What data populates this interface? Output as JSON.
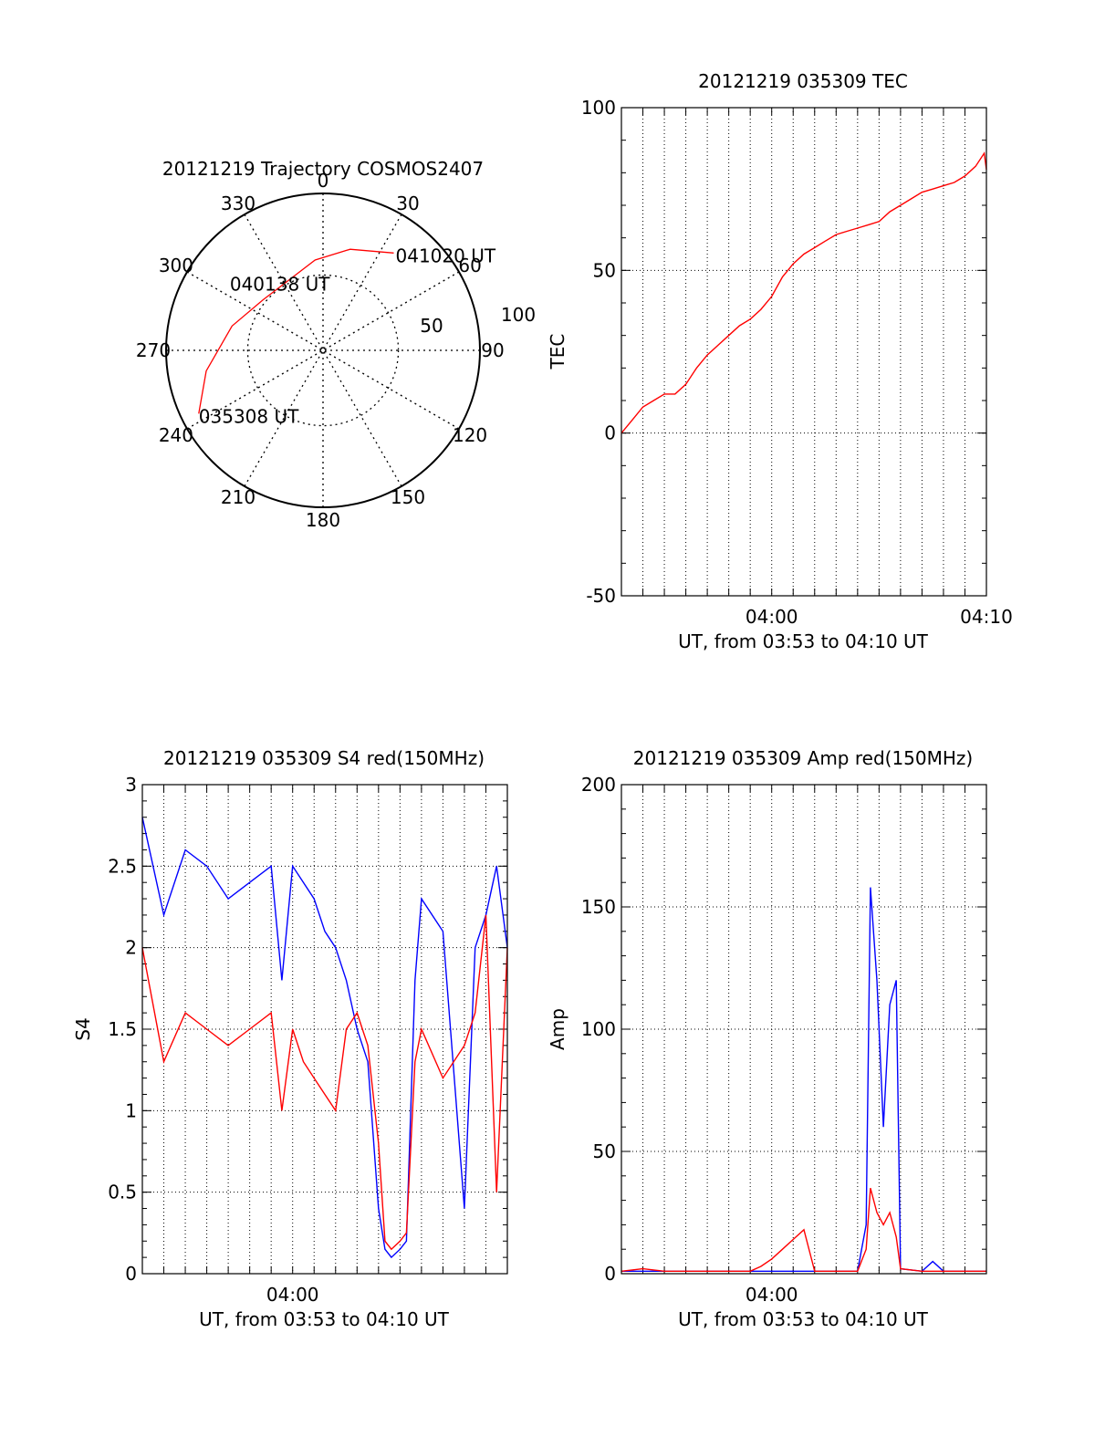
{
  "colors": {
    "red": "#ff0000",
    "blue": "#0000ff",
    "axis": "#000000",
    "grid": "#000000"
  },
  "chart_data": [
    {
      "type": "polar",
      "title": "20121219 Trajectory COSMOS2407",
      "azimuth_labels": [
        "0",
        "30",
        "60",
        "90",
        "120",
        "150",
        "180",
        "210",
        "240",
        "270",
        "300",
        "330"
      ],
      "radial_labels": [
        "50",
        "100"
      ],
      "points": [
        {
          "label": "035308 UT",
          "az": 243,
          "el": 10
        },
        {
          "label": "040138 UT",
          "az": 325,
          "el": 47
        },
        {
          "label": "041020 UT",
          "az": 36,
          "el": 21
        }
      ],
      "track": [
        [
          243,
          10
        ],
        [
          260,
          22
        ],
        [
          285,
          36
        ],
        [
          310,
          45
        ],
        [
          335,
          45
        ],
        [
          355,
          38
        ],
        [
          15,
          30
        ],
        [
          36,
          21
        ]
      ]
    },
    {
      "type": "line",
      "title": "20121219 035309 TEC",
      "ylabel": "TEC",
      "xlabel": "UT, from 03:53 to 04:10 UT",
      "ylim": [
        -50,
        100
      ],
      "xlim_minutes": [
        0,
        17
      ],
      "yticks": [
        "100",
        "50",
        "0",
        "-50"
      ],
      "xticks": [
        {
          "at": 7,
          "label": "04:00"
        },
        {
          "at": 17,
          "label": "04:10"
        }
      ],
      "grid": true,
      "series": [
        {
          "color": "red",
          "x": [
            0,
            0.5,
            1,
            1.5,
            2,
            2.5,
            3,
            3.5,
            4,
            4.5,
            5,
            5.5,
            6,
            6.5,
            7,
            7.5,
            8,
            8.5,
            9,
            9.5,
            10,
            10.5,
            11,
            11.5,
            12,
            12.5,
            13,
            13.5,
            14,
            14.5,
            15,
            15.5,
            16,
            16.5,
            16.9,
            17
          ],
          "y": [
            0,
            4,
            8,
            10,
            12,
            12,
            15,
            20,
            24,
            27,
            30,
            33,
            35,
            38,
            42,
            48,
            52,
            55,
            57,
            59,
            61,
            62,
            63,
            64,
            65,
            68,
            70,
            72,
            74,
            75,
            76,
            77,
            79,
            82,
            86,
            81
          ]
        }
      ]
    },
    {
      "type": "line",
      "title": "20121219 035309 S4 red(150MHz)",
      "ylabel": "S4",
      "xlabel": "UT, from 03:53 to 04:10 UT",
      "ylim": [
        0,
        3
      ],
      "xlim_minutes": [
        0,
        17
      ],
      "yticks": [
        "3",
        "2.5",
        "2",
        "1.5",
        "1",
        "0.5",
        "0"
      ],
      "xticks": [
        {
          "at": 7,
          "label": "04:00"
        }
      ],
      "grid": true,
      "series": [
        {
          "color": "blue",
          "x": [
            0,
            1,
            2,
            3,
            4,
            5,
            6,
            6.5,
            7,
            7.5,
            8,
            8.5,
            9,
            9.5,
            10,
            10.5,
            11,
            11.3,
            11.6,
            12,
            12.3,
            12.7,
            13,
            14,
            15,
            15.5,
            16,
            16.5,
            17
          ],
          "y": [
            2.8,
            2.2,
            2.6,
            2.5,
            2.3,
            2.4,
            2.5,
            1.8,
            2.5,
            2.4,
            2.3,
            2.1,
            2.0,
            1.8,
            1.5,
            1.3,
            0.4,
            0.15,
            0.1,
            0.15,
            0.2,
            1.8,
            2.3,
            2.1,
            0.4,
            2.0,
            2.2,
            2.5,
            2.0
          ]
        },
        {
          "color": "red",
          "x": [
            0,
            1,
            2,
            3,
            4,
            5,
            6,
            6.5,
            7,
            7.5,
            8,
            8.5,
            9,
            9.5,
            10,
            10.5,
            11,
            11.3,
            11.6,
            12,
            12.3,
            12.7,
            13,
            14,
            15,
            15.5,
            16,
            16.5,
            17
          ],
          "y": [
            2.0,
            1.3,
            1.6,
            1.5,
            1.4,
            1.5,
            1.6,
            1.0,
            1.5,
            1.3,
            1.2,
            1.1,
            1.0,
            1.5,
            1.6,
            1.4,
            0.8,
            0.2,
            0.15,
            0.2,
            0.25,
            1.3,
            1.5,
            1.2,
            1.4,
            1.6,
            2.2,
            0.5,
            2.0
          ]
        }
      ]
    },
    {
      "type": "line",
      "title": "20121219 035309 Amp red(150MHz)",
      "ylabel": "Amp",
      "xlabel": "UT, from 03:53 to 04:10 UT",
      "ylim": [
        0,
        200
      ],
      "xlim_minutes": [
        0,
        17
      ],
      "yticks": [
        "200",
        "150",
        "100",
        "50",
        "0"
      ],
      "xticks": [
        {
          "at": 7,
          "label": "04:00"
        }
      ],
      "grid": true,
      "series": [
        {
          "color": "blue",
          "x": [
            0,
            2,
            4,
            6,
            8,
            10,
            11,
            11.4,
            11.6,
            11.9,
            12.2,
            12.5,
            12.8,
            13,
            14,
            14.5,
            15,
            17
          ],
          "y": [
            1,
            1,
            1,
            1,
            1,
            1,
            1,
            20,
            158,
            120,
            60,
            110,
            120,
            2,
            1,
            5,
            1,
            1
          ]
        },
        {
          "color": "red",
          "x": [
            0,
            1,
            2,
            4,
            6,
            6.5,
            7,
            7.5,
            8,
            8.5,
            9,
            11,
            11.4,
            11.6,
            11.9,
            12.2,
            12.5,
            12.8,
            13,
            14,
            17
          ],
          "y": [
            1,
            2,
            1,
            1,
            1,
            3,
            6,
            10,
            14,
            18,
            1,
            1,
            10,
            35,
            25,
            20,
            25,
            15,
            2,
            1,
            1
          ]
        }
      ]
    }
  ],
  "polar_title": "20121219 Trajectory COSMOS2407",
  "tec_title": "20121219 035309 TEC",
  "s4_title": "20121219 035309 S4 red(150MHz)",
  "amp_title": "20121219 035309 Amp red(150MHz)",
  "xlabel": "UT, from 03:53 to 04:10 UT"
}
